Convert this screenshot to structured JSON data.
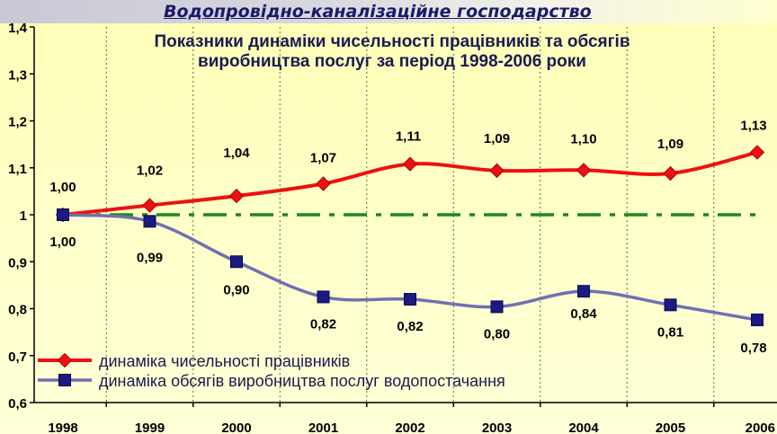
{
  "header": {
    "title": "Водопровідно-каналізаційне господарство"
  },
  "chart_data": {
    "type": "line",
    "title_line1": "Показники динаміки чисельності працівників та обсягів",
    "title_line2": "виробництва послуг за період 1998-2006 роки",
    "categories": [
      "1998",
      "1999",
      "2000",
      "2001",
      "2002",
      "2003",
      "2004",
      "2005",
      "2006"
    ],
    "ylim": [
      0.6,
      1.4
    ],
    "yticks": [
      {
        "value": 1.4,
        "label": "1,4"
      },
      {
        "value": 1.3,
        "label": "1,3"
      },
      {
        "value": 1.2,
        "label": "1,2"
      },
      {
        "value": 1.1,
        "label": "1,1"
      },
      {
        "value": 1.0,
        "label": "1"
      },
      {
        "value": 0.9,
        "label": "0,9"
      },
      {
        "value": 0.8,
        "label": "0,8"
      },
      {
        "value": 0.7,
        "label": "0,7"
      },
      {
        "value": 0.6,
        "label": "0,6"
      }
    ],
    "reference_line": {
      "value": 1.0,
      "color": "#1a8a1a",
      "style": "dash-dot"
    },
    "grid": "vertical dotted",
    "legend_position": "bottom-left",
    "series": [
      {
        "name": "динаміка чисельності працівників",
        "color": "#ee1111",
        "marker": "diamond",
        "values": [
          1.0,
          1.02,
          1.04,
          1.066,
          1.108,
          1.094,
          1.095,
          1.088,
          1.133
        ],
        "labels": [
          "1,00",
          "1,02",
          "1,04",
          "1,07",
          "1,11",
          "1,09",
          "1,10",
          "1,09",
          "1,13"
        ]
      },
      {
        "name": "динаміка обсягів виробництва послуг водопостачання",
        "color": "#7070b0",
        "marker_color": "#1a1a80",
        "marker": "square",
        "values": [
          1.0,
          0.986,
          0.9,
          0.825,
          0.82,
          0.804,
          0.837,
          0.808,
          0.776
        ],
        "labels": [
          "1,00",
          "0,99",
          "0,90",
          "0,82",
          "0,82",
          "0,80",
          "0,84",
          "0,81",
          "0,78"
        ]
      }
    ]
  }
}
